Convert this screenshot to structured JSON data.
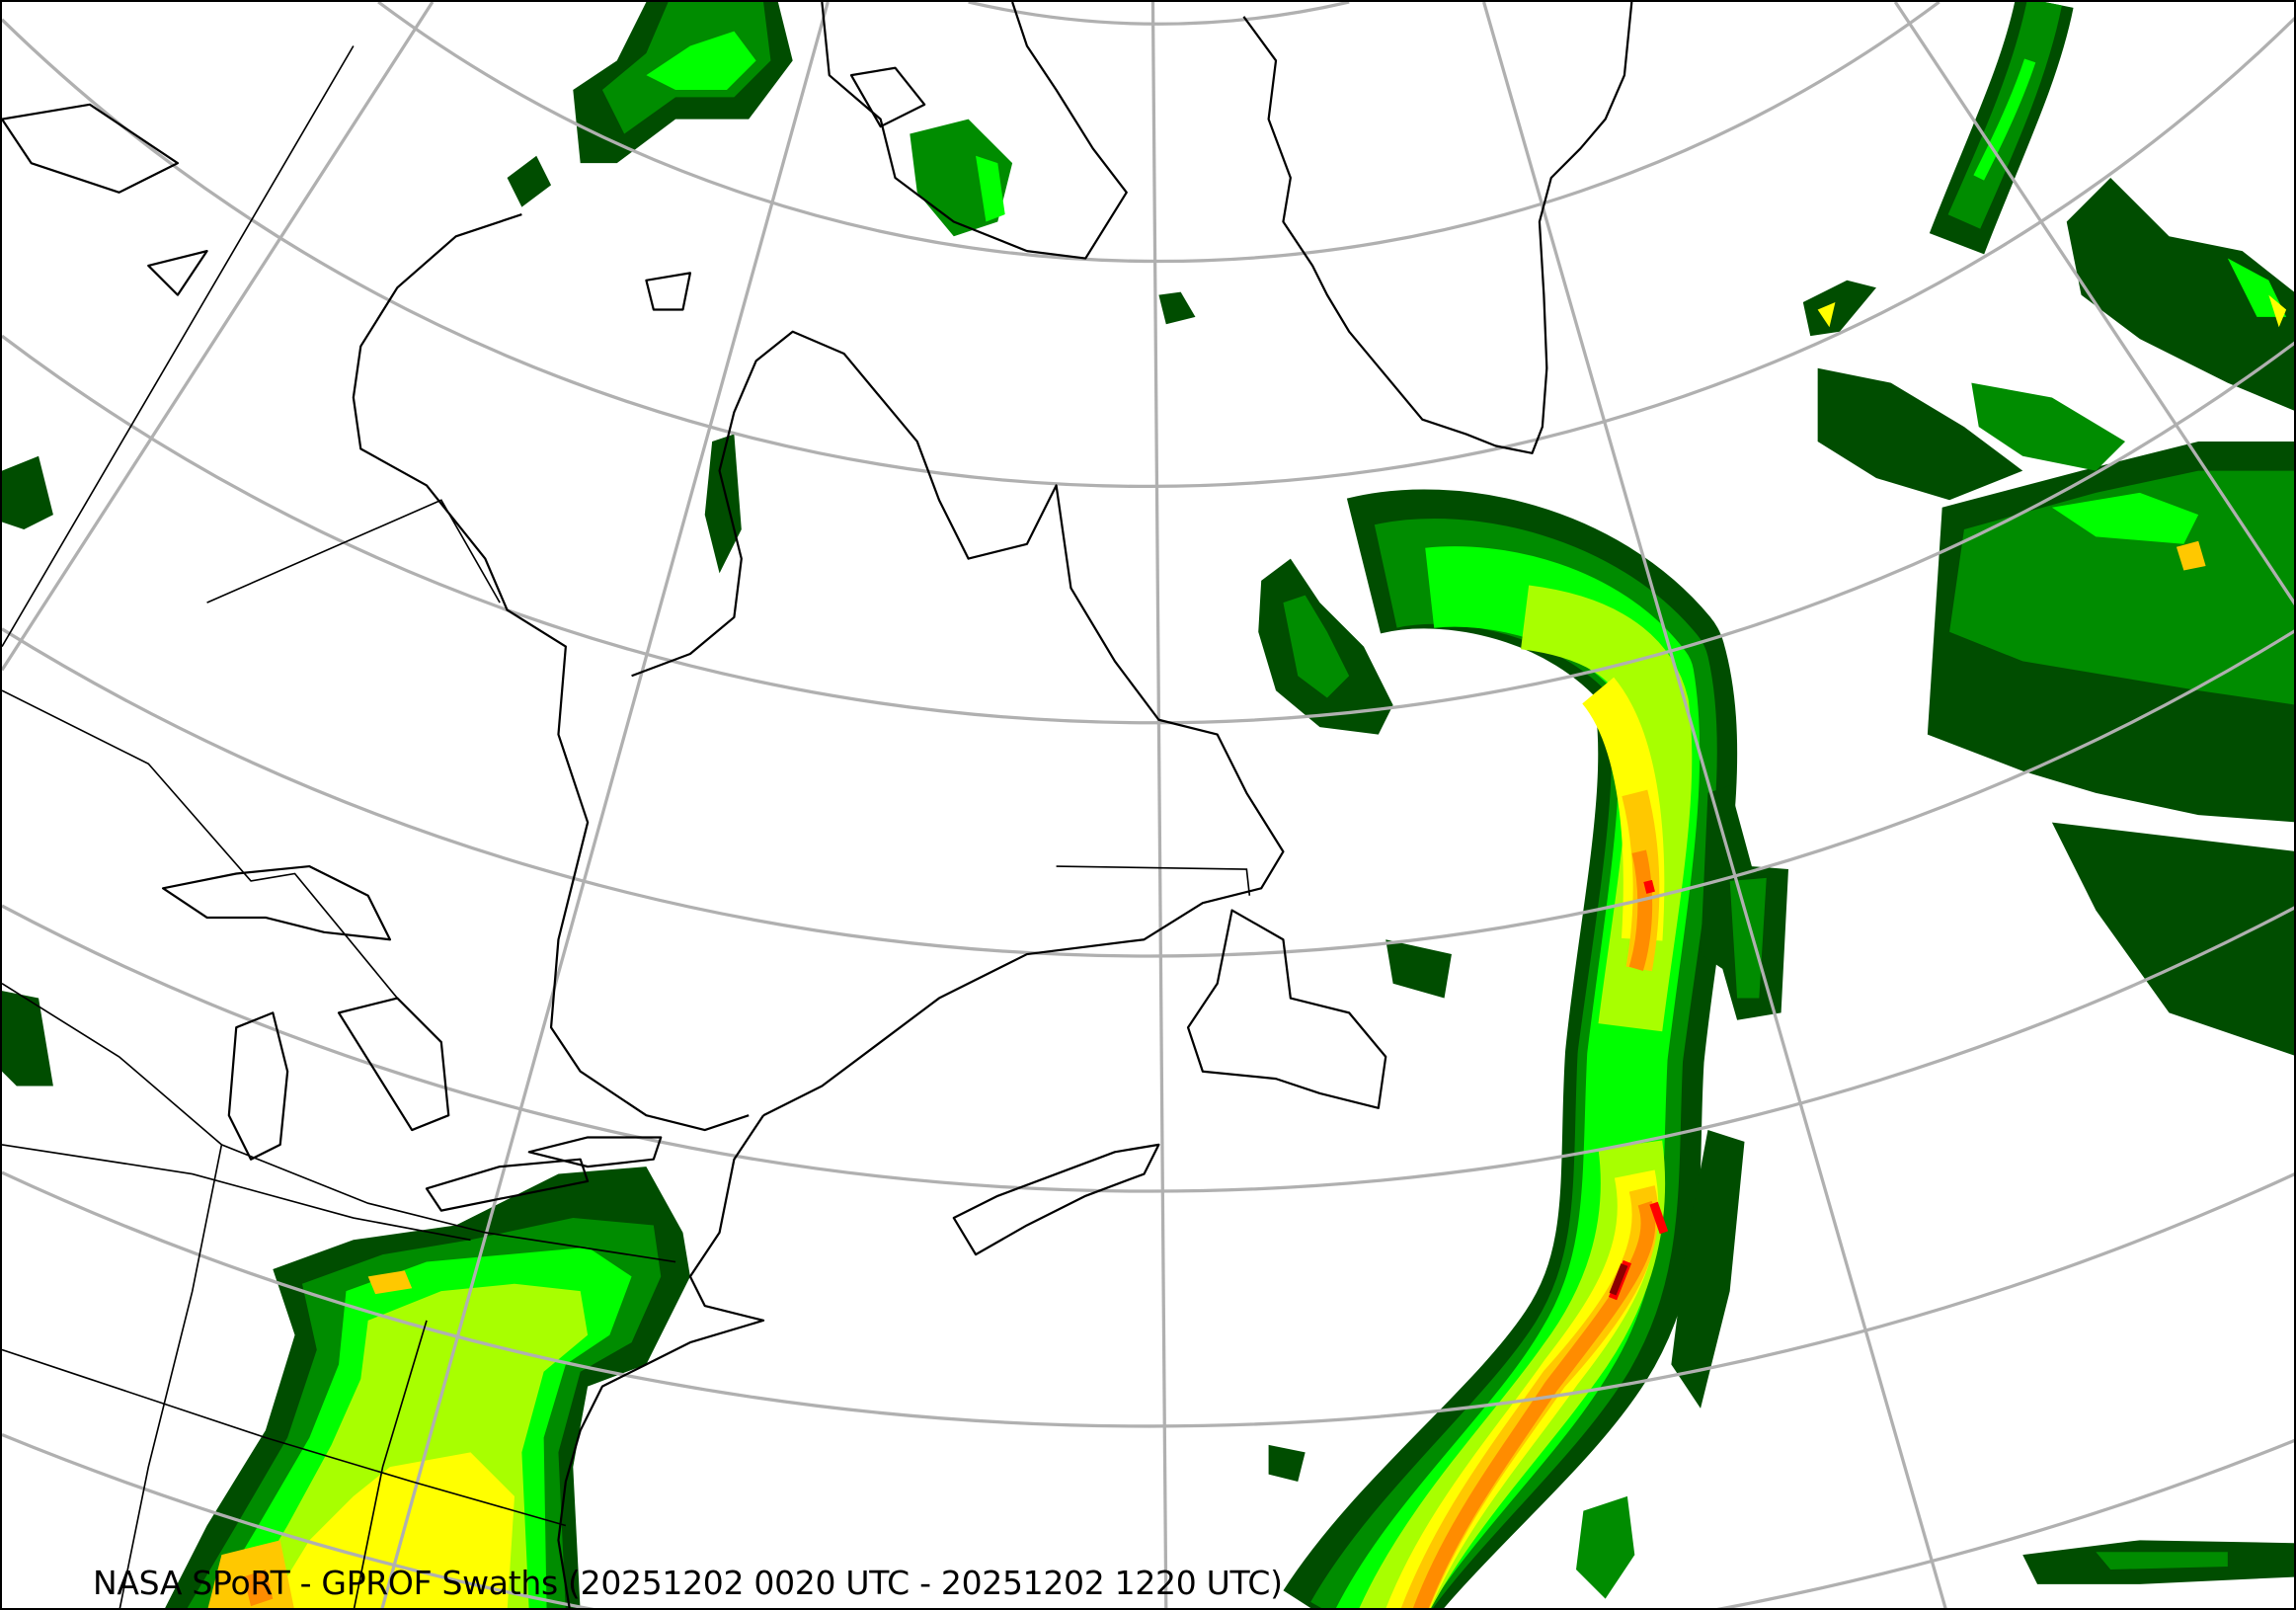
{
  "caption": "NASA SPoRT - GPROF Swaths (20251202 0020 UTC - 20251202 1220 UTC)",
  "map": {
    "projection_view": "North Atlantic / Eastern North America",
    "graticule": true,
    "color_scale": [
      "#004d00",
      "#008c00",
      "#00ff00",
      "#a8ff00",
      "#ffff00",
      "#ffc800",
      "#ff8c00",
      "#ff0000",
      "#8b0000"
    ],
    "coastline_color": "#000000",
    "graticule_color": "#b0b0b0"
  }
}
